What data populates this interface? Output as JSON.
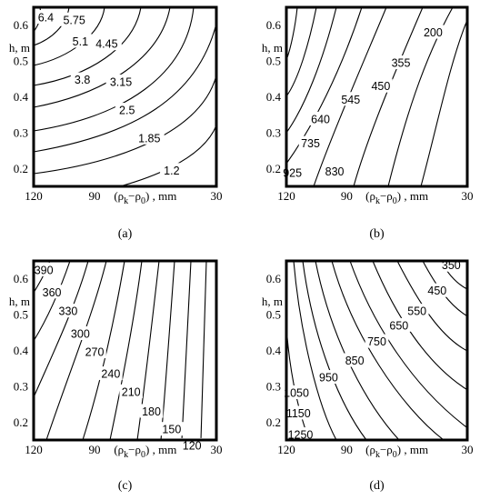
{
  "chart_data": [
    {
      "type": "contour",
      "panel": "(a)",
      "caption": "(a)",
      "xlabel": "(ρk−ρ0) , mm",
      "ylabel": "h, m",
      "x_ticks": [
        120,
        90,
        30
      ],
      "y_ticks": [
        0.2,
        0.3,
        0.4,
        0.5,
        0.6
      ],
      "xlim": [
        120,
        30
      ],
      "ylim": [
        0.15,
        0.65
      ],
      "levels": [
        "6.4",
        "5.75",
        "5.1",
        "4.45",
        "3.8",
        "3.15",
        "2.5",
        "1.85",
        "1.2"
      ],
      "label_positions": [
        [
          114,
          0.622
        ],
        [
          100,
          0.615
        ],
        [
          97,
          0.555
        ],
        [
          84,
          0.548
        ],
        [
          96,
          0.448
        ],
        [
          77,
          0.442
        ],
        [
          74,
          0.363
        ],
        [
          63,
          0.285
        ],
        [
          52,
          0.195
        ]
      ]
    },
    {
      "type": "contour",
      "panel": "(b)",
      "caption": "(b)",
      "xlabel": "(ρk−ρ0) , mm",
      "ylabel": "h, m",
      "x_ticks": [
        120,
        90,
        30
      ],
      "y_ticks": [
        0.2,
        0.3,
        0.4,
        0.5,
        0.6
      ],
      "xlim": [
        120,
        30
      ],
      "ylim": [
        0.15,
        0.65
      ],
      "levels": [
        "200",
        "355",
        "450",
        "545",
        "640",
        "735",
        "830",
        "925"
      ],
      "label_positions": [
        [
          47,
          0.58
        ],
        [
          63,
          0.495
        ],
        [
          73,
          0.43
        ],
        [
          88,
          0.393
        ],
        [
          103,
          0.338
        ],
        [
          108,
          0.27
        ],
        [
          96,
          0.192
        ],
        [
          117,
          0.188
        ]
      ]
    },
    {
      "type": "contour",
      "panel": "(c)",
      "caption": "(c)",
      "xlabel": "(ρk−ρ0) , mm",
      "ylabel": "h, m",
      "x_ticks": [
        120,
        90,
        30
      ],
      "y_ticks": [
        0.2,
        0.3,
        0.4,
        0.5,
        0.6
      ],
      "xlim": [
        120,
        30
      ],
      "ylim": [
        0.15,
        0.65
      ],
      "levels": [
        "390",
        "360",
        "330",
        "300",
        "270",
        "240",
        "210",
        "180",
        "150",
        "120"
      ],
      "label_positions": [
        [
          115,
          0.625
        ],
        [
          111,
          0.563
        ],
        [
          103,
          0.51
        ],
        [
          97,
          0.447
        ],
        [
          90,
          0.396
        ],
        [
          82,
          0.335
        ],
        [
          72,
          0.285
        ],
        [
          62,
          0.23
        ],
        [
          52,
          0.18
        ],
        [
          42,
          0.135
        ]
      ]
    },
    {
      "type": "contour",
      "panel": "(d)",
      "caption": "(d)",
      "xlabel": "(ρk−ρ0) , mm",
      "ylabel": "h, m",
      "x_ticks": [
        120,
        90,
        30
      ],
      "y_ticks": [
        0.2,
        0.3,
        0.4,
        0.5,
        0.6
      ],
      "xlim": [
        120,
        30
      ],
      "ylim": [
        0.15,
        0.65
      ],
      "levels": [
        "350",
        "450",
        "550",
        "650",
        "750",
        "850",
        "950",
        "1050",
        "1150",
        "1250"
      ],
      "label_positions": [
        [
          38,
          0.638
        ],
        [
          45,
          0.567
        ],
        [
          55,
          0.51
        ],
        [
          64,
          0.47
        ],
        [
          75,
          0.425
        ],
        [
          86,
          0.372
        ],
        [
          99,
          0.325
        ],
        [
          115,
          0.282
        ],
        [
          114,
          0.225
        ],
        [
          113,
          0.165
        ]
      ]
    }
  ]
}
